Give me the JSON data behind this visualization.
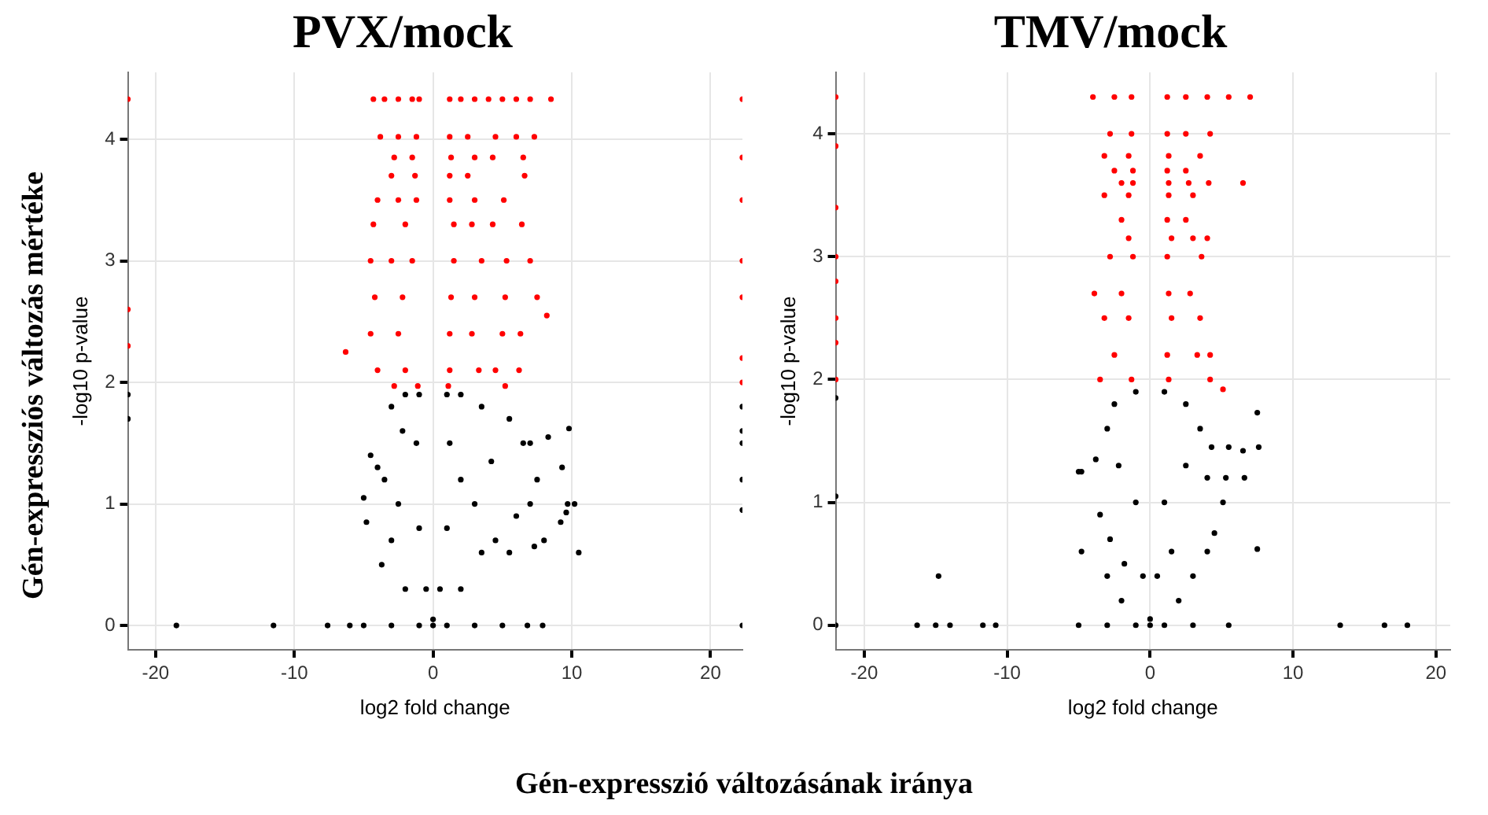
{
  "chart_data": [
    {
      "type": "scatter",
      "title": "PVX/mock",
      "xlabel": "log2 fold change",
      "ylabel": "-log10 p-value",
      "xlim": [
        -22,
        22.3
      ],
      "ylim": [
        -0.2,
        4.55
      ],
      "xticks": [
        -20,
        -10,
        0,
        10,
        20
      ],
      "yticks": [
        0,
        1,
        2,
        3,
        4
      ],
      "grid": true,
      "marker": "circle",
      "annotations": [
        "Gén-expressziós változás mértéke",
        "Gén-expresszió változásának iránya"
      ],
      "series": [
        {
          "color": "#ff0000",
          "x": [
            -4.3,
            -3.5,
            -2.5,
            -1.5,
            -1.0,
            1.2,
            2,
            3,
            4,
            5,
            6,
            7,
            8.5,
            -3.8,
            -2.5,
            -1.2,
            1.2,
            2.5,
            4.5,
            6,
            7.3,
            -2.8,
            -1.5,
            1.3,
            3,
            4.3,
            6.5,
            -3,
            -1.3,
            1.2,
            2.5,
            6.6,
            -4,
            -2.5,
            -1.2,
            1.2,
            3,
            5.1,
            -4.3,
            -2,
            1.5,
            2.8,
            4.3,
            6.4,
            -4.5,
            -3,
            -1.5,
            1.5,
            3.5,
            5.3,
            7,
            -4.2,
            -2.2,
            1.3,
            3,
            5.2,
            7.5,
            8.2,
            -4.5,
            -2.5,
            1.2,
            2.8,
            5,
            6.3,
            -6.3,
            -4,
            -2,
            1.2,
            3.3,
            6.2,
            4.5,
            -2.8,
            -1.1,
            1.1,
            5.2,
            -22,
            -22,
            -22,
            22.3,
            22.3,
            22.3,
            22.3,
            22.3,
            22.3,
            22.3
          ],
          "values": [
            4.33,
            4.33,
            4.33,
            4.33,
            4.33,
            4.33,
            4.33,
            4.33,
            4.33,
            4.33,
            4.33,
            4.33,
            4.33,
            4.02,
            4.02,
            4.02,
            4.02,
            4.02,
            4.02,
            4.02,
            4.02,
            3.85,
            3.85,
            3.85,
            3.85,
            3.85,
            3.85,
            3.7,
            3.7,
            3.7,
            3.7,
            3.7,
            3.5,
            3.5,
            3.5,
            3.5,
            3.5,
            3.5,
            3.3,
            3.3,
            3.3,
            3.3,
            3.3,
            3.3,
            3.0,
            3.0,
            3.0,
            3.0,
            3.0,
            3.0,
            3.0,
            2.7,
            2.7,
            2.7,
            2.7,
            2.7,
            2.7,
            2.55,
            2.4,
            2.4,
            2.4,
            2.4,
            2.4,
            2.4,
            2.25,
            2.1,
            2.1,
            2.1,
            2.1,
            2.1,
            2.1,
            1.97,
            1.97,
            1.97,
            1.97,
            4.33,
            2.6,
            2.3,
            4.33,
            3.85,
            3.5,
            3.0,
            2.7,
            2.2,
            2.0
          ]
        },
        {
          "color": "#000000",
          "x": [
            -18.5,
            -11.5,
            -7.6,
            -6,
            -5,
            -3,
            -1,
            0,
            1,
            3,
            5,
            6.8,
            7.9,
            22.3,
            0,
            -0.5,
            0.5,
            -1,
            1,
            -1.2,
            1.2,
            -1,
            1,
            -2,
            2,
            -3,
            3.5,
            -4.5,
            -4,
            -5,
            -4.8,
            -3.7,
            -3,
            -2,
            2,
            3.5,
            4.5,
            5.5,
            6,
            7,
            7.5,
            7,
            8.3,
            9.8,
            9.3,
            9.7,
            10.2,
            9.6,
            9.2,
            10.5,
            8,
            7.3,
            6.5,
            5.5,
            4.2,
            3,
            2,
            -2.5,
            -3.5,
            -2.2,
            22.3,
            22.3,
            22.3,
            22.3,
            22.3,
            -22,
            -22
          ],
          "values": [
            0,
            0,
            0,
            0,
            0,
            0,
            0,
            0,
            0,
            0,
            0,
            0,
            0,
            0,
            0.05,
            0.3,
            0.3,
            0.8,
            0.8,
            1.5,
            1.5,
            1.9,
            1.9,
            1.9,
            1.9,
            1.8,
            1.8,
            1.4,
            1.3,
            1.05,
            0.85,
            0.5,
            0.7,
            0.3,
            0.3,
            0.6,
            0.7,
            0.6,
            0.9,
            1.0,
            1.2,
            1.5,
            1.55,
            1.62,
            1.3,
            1.0,
            1.0,
            0.93,
            0.85,
            0.6,
            0.7,
            0.65,
            1.5,
            1.7,
            1.35,
            1.0,
            1.2,
            1.0,
            1.2,
            1.6,
            1.8,
            1.6,
            1.2,
            0.95,
            1.5,
            1.9,
            1.7
          ]
        }
      ]
    },
    {
      "type": "scatter",
      "title": "TMV/mock",
      "xlabel": "log2 fold change",
      "ylabel": "-log10 p-value",
      "xlim": [
        -22,
        21
      ],
      "ylim": [
        -0.2,
        4.5
      ],
      "xticks": [
        -20,
        -10,
        0,
        10,
        20
      ],
      "yticks": [
        0,
        1,
        2,
        3,
        4
      ],
      "grid": true,
      "marker": "circle",
      "series": [
        {
          "color": "#ff0000",
          "x": [
            -4,
            -2.5,
            -1.3,
            1.2,
            2.5,
            4,
            5.5,
            7,
            -2.8,
            -1.3,
            1.2,
            2.5,
            4.2,
            -3.2,
            -1.5,
            1.3,
            3.5,
            -2.5,
            -1.2,
            1.2,
            2.5,
            -2,
            -1.2,
            1.3,
            2.7,
            4.1,
            6.5,
            -3.2,
            -1.5,
            1.3,
            3.0,
            -2,
            1.2,
            2.5,
            -1.5,
            1.5,
            3,
            4.0,
            -2.8,
            -1.2,
            1.2,
            3.6,
            -3.9,
            -2,
            1.3,
            2.8,
            -3.2,
            -1.5,
            1.5,
            3.5,
            -2.5,
            1.2,
            3.3,
            4.2,
            -3.5,
            -1.3,
            1.3,
            4.2,
            5.1,
            -22,
            -22,
            -22,
            -22,
            -22,
            -22,
            -22,
            -22
          ],
          "values": [
            4.3,
            4.3,
            4.3,
            4.3,
            4.3,
            4.3,
            4.3,
            4.3,
            4.0,
            4.0,
            4.0,
            4.0,
            4.0,
            3.82,
            3.82,
            3.82,
            3.82,
            3.7,
            3.7,
            3.7,
            3.7,
            3.6,
            3.6,
            3.6,
            3.6,
            3.6,
            3.6,
            3.5,
            3.5,
            3.5,
            3.5,
            3.3,
            3.3,
            3.3,
            3.15,
            3.15,
            3.15,
            3.15,
            3.0,
            3.0,
            3.0,
            3.0,
            2.7,
            2.7,
            2.7,
            2.7,
            2.5,
            2.5,
            2.5,
            2.5,
            2.2,
            2.2,
            2.2,
            2.2,
            2.0,
            2.0,
            2.0,
            2.0,
            1.92,
            4.3,
            3.9,
            3.4,
            3.0,
            2.8,
            2.5,
            2.3,
            2.0
          ]
        },
        {
          "color": "#000000",
          "x": [
            -16.3,
            -15,
            -14,
            -11.7,
            -10.8,
            -5,
            -3,
            -1,
            0,
            1,
            3,
            5.5,
            13.3,
            16.4,
            18,
            -14.8,
            0,
            -0.5,
            0.5,
            -1,
            1,
            -1,
            1,
            -2.5,
            2.5,
            -3,
            -4.8,
            -5,
            -3.8,
            -4.8,
            -3.5,
            -3,
            -2,
            2,
            3,
            4,
            4.5,
            5.1,
            5.3,
            5.5,
            6.6,
            6.5,
            7.5,
            7.6,
            7.5,
            4.3,
            3.5,
            2.5,
            -2.2,
            -2.8,
            -1.8,
            1.5,
            4.0,
            -22,
            -22,
            -22
          ],
          "values": [
            0,
            0,
            0,
            0,
            0,
            0,
            0,
            0,
            0,
            0,
            0,
            0,
            0,
            0,
            0,
            0.4,
            0.05,
            0.4,
            0.4,
            1.0,
            1.0,
            1.9,
            1.9,
            1.8,
            1.8,
            1.6,
            1.25,
            1.25,
            1.35,
            0.6,
            0.9,
            0.4,
            0.2,
            0.2,
            0.4,
            0.6,
            0.75,
            1.0,
            1.2,
            1.45,
            1.2,
            1.42,
            1.73,
            1.45,
            0.62,
            1.45,
            1.6,
            1.3,
            1.3,
            0.7,
            0.5,
            0.6,
            1.2,
            1.85,
            1.05,
            0
          ]
        }
      ]
    }
  ]
}
